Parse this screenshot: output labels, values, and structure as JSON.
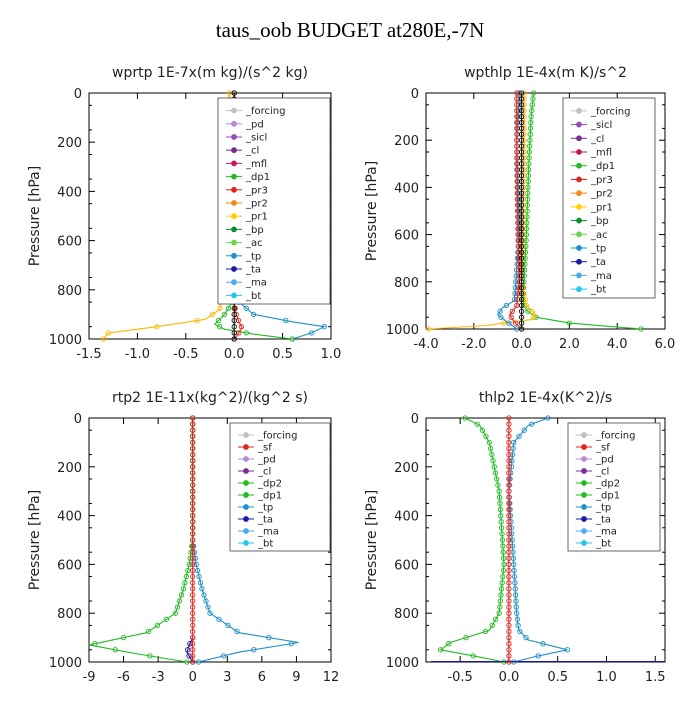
{
  "figure_title": "taus_oob  BUDGET at280E,-7N",
  "chart_data": [
    {
      "type": "line",
      "title": "wprtp   1E-7x(m kg)/(s^2 kg)",
      "ylabel": "Pressure [hPa]",
      "xlim": [
        -1.5,
        1.0
      ],
      "ylim": [
        1000,
        0
      ],
      "xticks": [
        "-1.5",
        "-1.0",
        "-0.5",
        "0.0",
        "0.5",
        "1.0"
      ],
      "yticks": [
        "0",
        "200",
        "400",
        "600",
        "800",
        "1000"
      ],
      "legend": [
        "_forcing",
        "_pd",
        "_sicl",
        "_cl",
        "_mfl",
        "_dp1",
        "_pr3",
        "_pr2",
        "_pr1",
        "_bp",
        "_ac",
        "_tp",
        "_ta",
        "_ma",
        "_bt"
      ],
      "series": [
        {
          "color": "#ffb700",
          "x": [
            -0.05,
            -0.05,
            -0.08,
            -0.1,
            -0.12,
            -0.15,
            -0.3,
            -0.8,
            -1.3,
            -1.35
          ],
          "y": [
            0,
            300,
            560,
            700,
            800,
            880,
            920,
            950,
            975,
            1000
          ]
        },
        {
          "color": "#1f8fc9",
          "x": [
            0.0,
            0.0,
            0.01,
            0.02,
            0.05,
            0.2,
            0.6,
            0.93,
            0.8,
            0.6
          ],
          "y": [
            0,
            400,
            600,
            800,
            850,
            900,
            930,
            950,
            975,
            1000
          ]
        },
        {
          "color": "#22bb22",
          "x": [
            0.0,
            0.0,
            0.0,
            -0.02,
            -0.1,
            -0.2,
            -0.1,
            0.2,
            0.6
          ],
          "y": [
            0,
            500,
            700,
            850,
            900,
            940,
            960,
            980,
            1000
          ]
        },
        {
          "color": "#e0251f",
          "x": [
            0.0,
            0.0,
            0.0,
            0.02,
            0.05,
            0.08,
            0.04,
            0.0
          ],
          "y": [
            0,
            600,
            850,
            900,
            930,
            955,
            980,
            1000
          ]
        },
        {
          "color": "#111111",
          "x": [
            0.0,
            0.0,
            0.0
          ],
          "y": [
            0,
            500,
            1000
          ]
        }
      ]
    },
    {
      "type": "line",
      "title": "wpthlp   1E-4x(m K)/s^2",
      "ylabel": "Pressure [hPa]",
      "xlim": [
        -4.0,
        6.0
      ],
      "ylim": [
        1000,
        0
      ],
      "xticks": [
        "-4.0",
        "-2.0",
        "0.0",
        "2.0",
        "4.0",
        "6.0"
      ],
      "yticks": [
        "0",
        "200",
        "400",
        "600",
        "800",
        "1000"
      ],
      "legend": [
        "_forcing",
        "_sicl",
        "_cl",
        "_mfl",
        "_dp1",
        "_pr3",
        "_pr2",
        "_pr1",
        "_bp",
        "_ac",
        "_tp",
        "_ta",
        "_ma",
        "_bt"
      ],
      "series": [
        {
          "color": "#22bb22",
          "x": [
            0.5,
            0.4,
            0.3,
            0.2,
            0.1,
            0.05,
            0.2,
            0.6,
            2.0,
            5.0
          ],
          "y": [
            0,
            100,
            300,
            600,
            800,
            880,
            920,
            950,
            975,
            1000
          ]
        },
        {
          "color": "#ffb700",
          "x": [
            0.1,
            0.1,
            0.05,
            0.0,
            0.2,
            0.6,
            0.4,
            -1.5,
            -3.9
          ],
          "y": [
            0,
            300,
            600,
            800,
            900,
            940,
            960,
            985,
            1000
          ]
        },
        {
          "color": "#1f8fc9",
          "x": [
            -0.1,
            -0.2,
            -0.1,
            -0.3,
            -0.8,
            -1.0,
            -0.6,
            -0.2
          ],
          "y": [
            0,
            200,
            600,
            880,
            910,
            940,
            970,
            1000
          ]
        },
        {
          "color": "#e0251f",
          "x": [
            -0.2,
            -0.2,
            -0.15,
            -0.1,
            -0.2,
            -0.5,
            -0.3,
            0.0
          ],
          "y": [
            0,
            300,
            600,
            800,
            900,
            940,
            970,
            1000
          ]
        },
        {
          "color": "#111111",
          "x": [
            0.0,
            0.0,
            0.0
          ],
          "y": [
            0,
            500,
            1000
          ]
        }
      ]
    },
    {
      "type": "line",
      "title": "rtp2   1E-11x(kg^2)/(kg^2 s)",
      "ylabel": "Pressure [hPa]",
      "xlim": [
        -9,
        12
      ],
      "ylim": [
        1000,
        0
      ],
      "xticks": [
        "-9",
        "-6",
        "-3",
        "0",
        "3",
        "6",
        "9",
        "12"
      ],
      "yticks": [
        "0",
        "200",
        "400",
        "600",
        "800",
        "1000"
      ],
      "legend": [
        "_forcing",
        "_sf",
        "_pd",
        "_cl",
        "_dp2",
        "_dp1",
        "_tp",
        "_ta",
        "_ma",
        "_bt"
      ],
      "series": [
        {
          "color": "#1f8fc9",
          "x": [
            0.0,
            0.0,
            0.3,
            0.8,
            1.5,
            4.0,
            9.2,
            4.0,
            0.5
          ],
          "y": [
            0,
            500,
            600,
            700,
            800,
            880,
            920,
            960,
            1000
          ]
        },
        {
          "color": "#22bb22",
          "x": [
            0.0,
            0.0,
            -0.3,
            -0.8,
            -1.5,
            -4.0,
            -9.0,
            -5.0,
            -0.5
          ],
          "y": [
            0,
            500,
            600,
            700,
            800,
            880,
            930,
            965,
            1000
          ]
        },
        {
          "color": "#1a1aa6",
          "x": [
            0.0,
            -0.3,
            -0.5,
            -0.2,
            0.0
          ],
          "y": [
            900,
            930,
            960,
            985,
            1000
          ]
        },
        {
          "color": "#e0251f",
          "x": [
            0.0,
            0.0,
            0.0
          ],
          "y": [
            0,
            500,
            1000
          ]
        }
      ]
    },
    {
      "type": "line",
      "title": "thlp2   1E-4x(K^2)/s",
      "ylabel": "Pressure [hPa]",
      "xlim": [
        -0.85,
        1.6
      ],
      "ylim": [
        1000,
        0
      ],
      "xticks": [
        "-0.5",
        "0.0",
        "0.5",
        "1.0",
        "1.5"
      ],
      "yticks": [
        "0",
        "200",
        "400",
        "600",
        "800",
        "1000"
      ],
      "legend": [
        "_forcing",
        "_sf",
        "_pd",
        "_cl",
        "_dp2",
        "_dp1",
        "_tp",
        "_ta",
        "_ma",
        "_bt"
      ],
      "series": [
        {
          "color": "#1f8fc9",
          "x": [
            0.4,
            0.2,
            0.05,
            0.0,
            0.05,
            0.08,
            0.1,
            0.2,
            0.6,
            0.3,
            0.05
          ],
          "y": [
            0,
            30,
            100,
            300,
            600,
            800,
            870,
            910,
            950,
            975,
            1000
          ]
        },
        {
          "color": "#22bb22",
          "x": [
            -0.45,
            -0.3,
            -0.2,
            -0.1,
            -0.05,
            -0.1,
            -0.2,
            -0.6,
            -0.7,
            -0.3,
            -0.05
          ],
          "y": [
            0,
            30,
            100,
            300,
            600,
            800,
            870,
            920,
            950,
            980,
            1000
          ]
        },
        {
          "color": "#1a1aa6",
          "x": [
            -0.8,
            0.0,
            1.6
          ],
          "y": [
            998,
            998,
            998
          ]
        },
        {
          "color": "#e0251f",
          "x": [
            0.0,
            0.0,
            0.0
          ],
          "y": [
            0,
            500,
            1000
          ]
        }
      ]
    }
  ]
}
